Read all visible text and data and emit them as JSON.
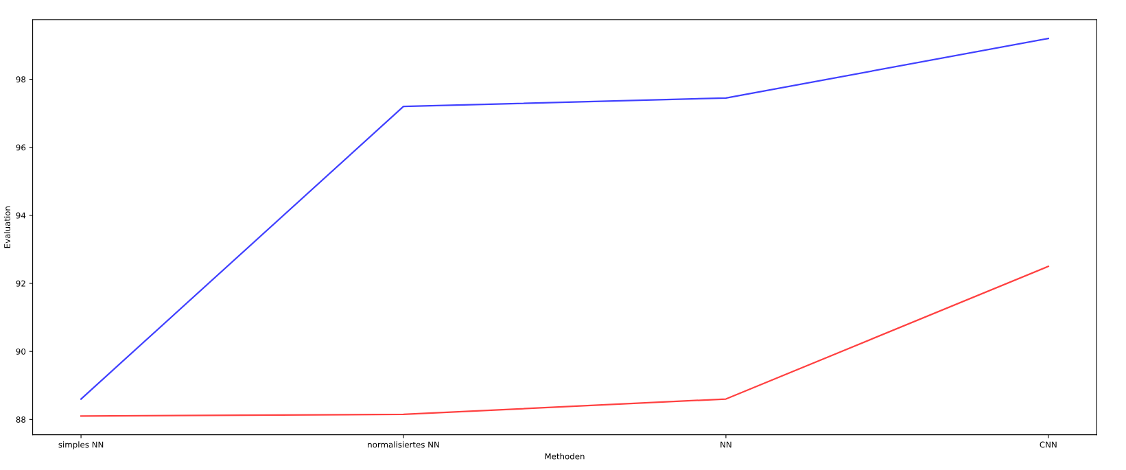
{
  "chart_data": {
    "type": "line",
    "xlabel": "Methoden",
    "ylabel": "Evaluation",
    "categories": [
      "simples NN",
      "normalisiertes NN",
      "NN",
      "CNN"
    ],
    "series": [
      {
        "color": "#4040ff",
        "values": [
          88.6,
          97.2,
          97.45,
          99.2
        ]
      },
      {
        "color": "#ff4040",
        "values": [
          88.1,
          88.15,
          88.6,
          92.5
        ]
      }
    ],
    "ylim": [
      87.55,
      99.75
    ],
    "yticks": [
      88,
      90,
      92,
      94,
      96,
      98
    ],
    "grid": false,
    "marker": "none",
    "line_style": "solid"
  }
}
